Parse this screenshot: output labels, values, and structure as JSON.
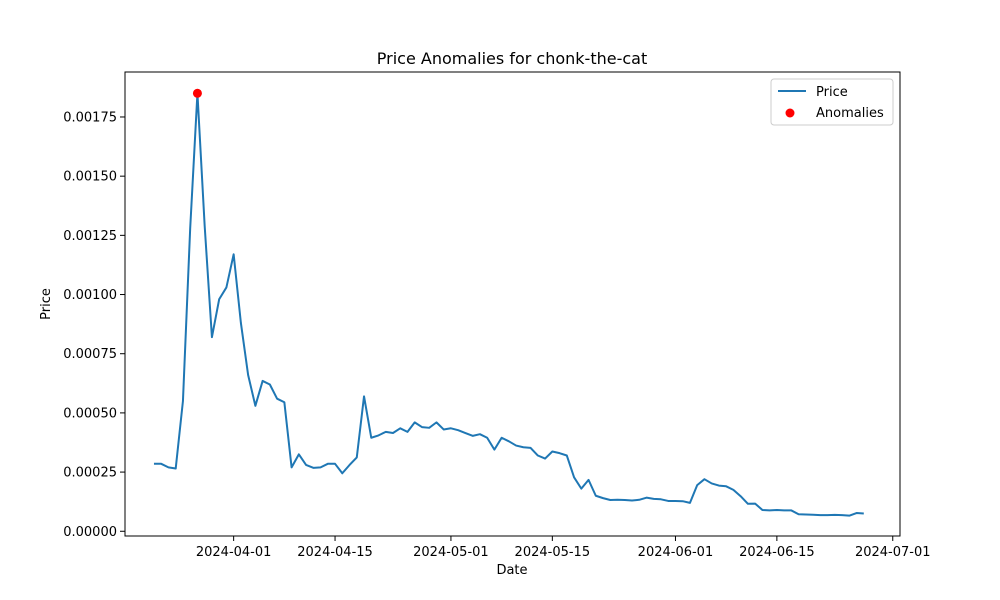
{
  "chart_data": {
    "type": "line",
    "title": "Price Anomalies for chonk-the-cat",
    "xlabel": "Date",
    "ylabel": "Price",
    "xlim": [
      "2024-03-17",
      "2024-07-02"
    ],
    "ylim": [
      -2e-05,
      0.00194
    ],
    "x_ticks": [
      "2024-04-01",
      "2024-04-15",
      "2024-05-01",
      "2024-05-15",
      "2024-06-01",
      "2024-06-15",
      "2024-07-01"
    ],
    "y_ticks": [
      "0.00000",
      "0.00025",
      "0.00050",
      "0.00075",
      "0.00100",
      "0.00125",
      "0.00150",
      "0.00175"
    ],
    "y_tick_values": [
      0,
      0.00025,
      0.0005,
      0.00075,
      0.001,
      0.00125,
      0.0015,
      0.00175
    ],
    "legend_position": "top-right",
    "grid": false,
    "series": [
      {
        "name": "Price",
        "color": "#1f77b4",
        "points": [
          [
            "2024-03-21",
            0.000285
          ],
          [
            "2024-03-22",
            0.000285
          ],
          [
            "2024-03-23",
            0.00027
          ],
          [
            "2024-03-24",
            0.000265
          ],
          [
            "2024-03-25",
            0.00055
          ],
          [
            "2024-03-26",
            0.00128
          ],
          [
            "2024-03-27",
            0.00185
          ],
          [
            "2024-03-28",
            0.00129
          ],
          [
            "2024-03-29",
            0.00082
          ],
          [
            "2024-03-30",
            0.00098
          ],
          [
            "2024-03-31",
            0.00103
          ],
          [
            "2024-04-01",
            0.00117
          ],
          [
            "2024-04-02",
            0.00088
          ],
          [
            "2024-04-03",
            0.00066
          ],
          [
            "2024-04-04",
            0.00053
          ],
          [
            "2024-04-05",
            0.000635
          ],
          [
            "2024-04-06",
            0.00062
          ],
          [
            "2024-04-07",
            0.00056
          ],
          [
            "2024-04-08",
            0.000545
          ],
          [
            "2024-04-09",
            0.00027
          ],
          [
            "2024-04-10",
            0.000325
          ],
          [
            "2024-04-11",
            0.00028
          ],
          [
            "2024-04-12",
            0.000268
          ],
          [
            "2024-04-13",
            0.00027
          ],
          [
            "2024-04-14",
            0.000285
          ],
          [
            "2024-04-15",
            0.000285
          ],
          [
            "2024-04-16",
            0.000245
          ],
          [
            "2024-04-17",
            0.00028
          ],
          [
            "2024-04-18",
            0.000312
          ],
          [
            "2024-04-19",
            0.00057
          ],
          [
            "2024-04-20",
            0.000395
          ],
          [
            "2024-04-21",
            0.000405
          ],
          [
            "2024-04-22",
            0.00042
          ],
          [
            "2024-04-23",
            0.000415
          ],
          [
            "2024-04-24",
            0.000435
          ],
          [
            "2024-04-25",
            0.00042
          ],
          [
            "2024-04-26",
            0.00046
          ],
          [
            "2024-04-27",
            0.00044
          ],
          [
            "2024-04-28",
            0.000437
          ],
          [
            "2024-04-29",
            0.00046
          ],
          [
            "2024-04-30",
            0.00043
          ],
          [
            "2024-05-01",
            0.000435
          ],
          [
            "2024-05-02",
            0.000427
          ],
          [
            "2024-05-03",
            0.000415
          ],
          [
            "2024-05-04",
            0.000403
          ],
          [
            "2024-05-05",
            0.00041
          ],
          [
            "2024-05-06",
            0.000395
          ],
          [
            "2024-05-07",
            0.000345
          ],
          [
            "2024-05-08",
            0.000395
          ],
          [
            "2024-05-09",
            0.00038
          ],
          [
            "2024-05-10",
            0.000362
          ],
          [
            "2024-05-11",
            0.000355
          ],
          [
            "2024-05-12",
            0.000352
          ],
          [
            "2024-05-13",
            0.00032
          ],
          [
            "2024-05-14",
            0.000307
          ],
          [
            "2024-05-15",
            0.000337
          ],
          [
            "2024-05-16",
            0.00033
          ],
          [
            "2024-05-17",
            0.00032
          ],
          [
            "2024-05-18",
            0.000228
          ],
          [
            "2024-05-19",
            0.00018
          ],
          [
            "2024-05-20",
            0.000217
          ],
          [
            "2024-05-21",
            0.00015
          ],
          [
            "2024-05-22",
            0.00014
          ],
          [
            "2024-05-23",
            0.000132
          ],
          [
            "2024-05-24",
            0.000133
          ],
          [
            "2024-05-25",
            0.000132
          ],
          [
            "2024-05-26",
            0.00013
          ],
          [
            "2024-05-27",
            0.000133
          ],
          [
            "2024-05-28",
            0.000142
          ],
          [
            "2024-05-29",
            0.000137
          ],
          [
            "2024-05-30",
            0.000135
          ],
          [
            "2024-05-31",
            0.000128
          ],
          [
            "2024-06-01",
            0.000128
          ],
          [
            "2024-06-02",
            0.000127
          ],
          [
            "2024-06-03",
            0.00012
          ],
          [
            "2024-06-04",
            0.000195
          ],
          [
            "2024-06-05",
            0.00022
          ],
          [
            "2024-06-06",
            0.000202
          ],
          [
            "2024-06-07",
            0.000193
          ],
          [
            "2024-06-08",
            0.00019
          ],
          [
            "2024-06-09",
            0.000175
          ],
          [
            "2024-06-10",
            0.000148
          ],
          [
            "2024-06-11",
            0.000116
          ],
          [
            "2024-06-12",
            0.000117
          ],
          [
            "2024-06-13",
            9e-05
          ],
          [
            "2024-06-14",
            8.8e-05
          ],
          [
            "2024-06-15",
            9e-05
          ],
          [
            "2024-06-16",
            8.8e-05
          ],
          [
            "2024-06-17",
            8.8e-05
          ],
          [
            "2024-06-18",
            7.2e-05
          ],
          [
            "2024-06-19",
            7.1e-05
          ],
          [
            "2024-06-20",
            7e-05
          ],
          [
            "2024-06-21",
            6.8e-05
          ],
          [
            "2024-06-22",
            6.8e-05
          ],
          [
            "2024-06-23",
            6.9e-05
          ],
          [
            "2024-06-24",
            6.8e-05
          ],
          [
            "2024-06-25",
            6.6e-05
          ],
          [
            "2024-06-26",
            7.7e-05
          ],
          [
            "2024-06-27",
            7.5e-05
          ]
        ]
      },
      {
        "name": "Anomalies",
        "type": "scatter",
        "color": "#ff0000",
        "points": [
          [
            "2024-03-27",
            0.00185
          ]
        ]
      }
    ]
  }
}
